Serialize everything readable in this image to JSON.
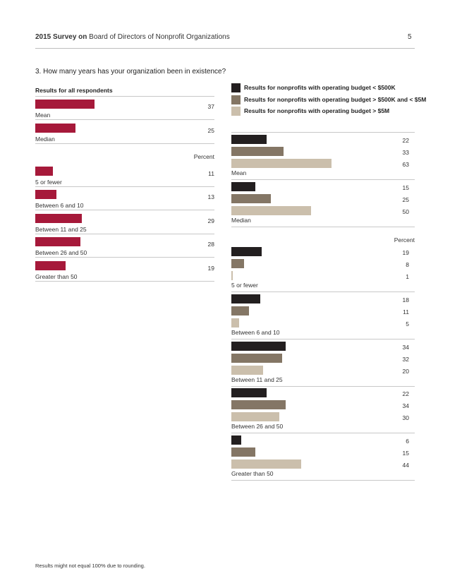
{
  "header": {
    "bold": "2015 Survey on",
    "rest": " Board of Directors of Nonprofit Organizations",
    "page_number": "5"
  },
  "question": "3.   How many years has your organization been in existence?",
  "left": {
    "heading": "Results for all respondents",
    "percent_label": "Percent",
    "color": "#a6193a",
    "groups": [
      {
        "label": "Mean",
        "value": 37
      },
      {
        "label": "Median",
        "value": 25
      },
      {
        "label": "5 or fewer",
        "value": 11
      },
      {
        "label": "Between 6 and 10",
        "value": 13
      },
      {
        "label": "Between 11 and 25",
        "value": 29
      },
      {
        "label": "Between 26 and 50",
        "value": 28
      },
      {
        "label": "Greater than 50",
        "value": 19
      }
    ]
  },
  "legend": [
    {
      "label": "Results for nonprofits with operating budget < $500K",
      "color": "#231f20"
    },
    {
      "label": "Results for nonprofits with operating budget > $500K and < $5M",
      "color": "#847665"
    },
    {
      "label": "Results for nonprofits with operating budget > $5M",
      "color": "#cbbfac"
    }
  ],
  "right": {
    "percent_label": "Percent",
    "groups": [
      {
        "label": "Mean",
        "values": [
          22,
          33,
          63
        ]
      },
      {
        "label": "Median",
        "values": [
          15,
          25,
          50
        ]
      },
      {
        "label": "5 or fewer",
        "values": [
          19,
          8,
          1
        ]
      },
      {
        "label": "Between 6 and 10",
        "values": [
          18,
          11,
          5
        ]
      },
      {
        "label": "Between 11 and 25",
        "values": [
          34,
          32,
          20
        ]
      },
      {
        "label": "Between 26 and 50",
        "values": [
          22,
          34,
          30
        ]
      },
      {
        "label": "Greater than 50",
        "values": [
          6,
          15,
          44
        ]
      }
    ]
  },
  "footnote": "Results might not equal 100% due to rounding."
}
